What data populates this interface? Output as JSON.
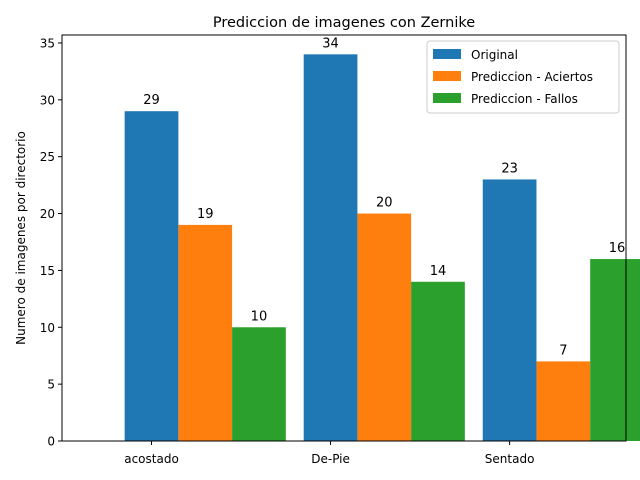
{
  "chart_data": {
    "type": "bar",
    "title": "Prediccion de imagenes con Zernike",
    "xlabel": "",
    "ylabel": "Numero de imagenes por directorio",
    "categories": [
      "acostado",
      "De-Pie",
      "Sentado"
    ],
    "series": [
      {
        "name": "Original",
        "values": [
          29,
          34,
          23
        ],
        "color": "#1f77b4"
      },
      {
        "name": "Prediccion - Aciertos",
        "values": [
          19,
          20,
          7
        ],
        "color": "#ff7f0e"
      },
      {
        "name": "Prediccion - Fallos",
        "values": [
          10,
          14,
          16
        ],
        "color": "#2ca02c"
      }
    ],
    "ylim": [
      0,
      35.7
    ],
    "yticks": [
      0,
      5,
      10,
      15,
      20,
      25,
      30,
      35
    ],
    "legend": "top-right",
    "grid": false,
    "data_labels": true
  }
}
